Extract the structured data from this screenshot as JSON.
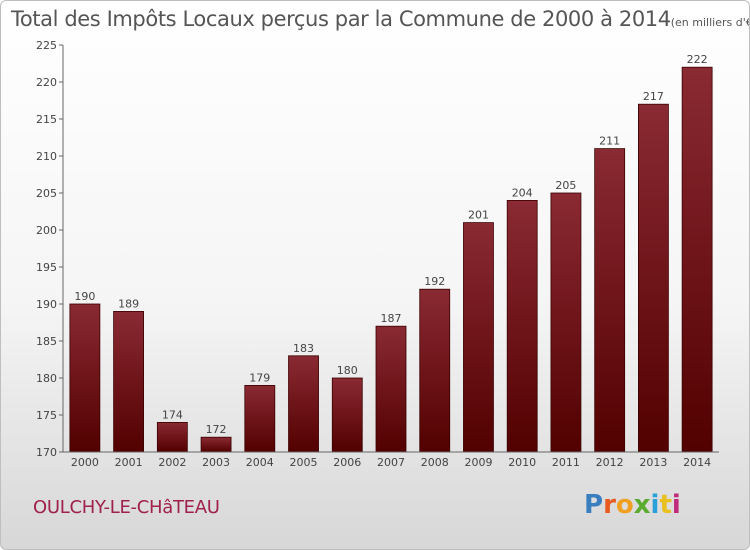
{
  "chart_data": {
    "type": "bar",
    "title": "Total des Impôts Locaux perçus par la Commune de 2000 à 2014",
    "subtitle": "(en milliers d'€)",
    "xlabel": "",
    "ylabel": "",
    "categories": [
      "2000",
      "2001",
      "2002",
      "2003",
      "2004",
      "2005",
      "2006",
      "2007",
      "2008",
      "2009",
      "2010",
      "2011",
      "2012",
      "2013",
      "2014"
    ],
    "values": [
      190,
      189,
      174,
      172,
      179,
      183,
      180,
      187,
      192,
      201,
      204,
      205,
      211,
      217,
      222
    ],
    "ylim": [
      170,
      225
    ],
    "yticks": [
      170,
      175,
      180,
      185,
      190,
      195,
      200,
      205,
      210,
      215,
      220,
      225
    ],
    "grid": false,
    "bar_color": "#7a1a1f"
  },
  "footer": {
    "commune": "OULCHY-LE-CHâTEAU",
    "brand": "Proxiti",
    "brand_colors": [
      "#3b7ec0",
      "#e85a1e",
      "#f0a020",
      "#5aab2e",
      "#2aa0d8",
      "#e8c020",
      "#c02a7a"
    ]
  }
}
